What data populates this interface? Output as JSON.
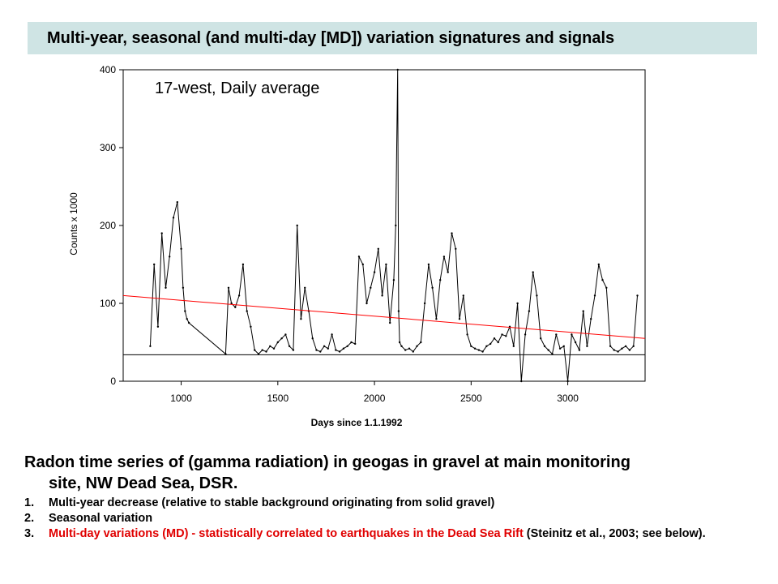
{
  "title": "Multi-year, seasonal (and multi-day [MD]) variation signatures and signals",
  "chart_data": {
    "type": "line",
    "annotation": "17-west, Daily average",
    "xlabel": "Days since 1.1.1992",
    "ylabel": "Counts x 1000",
    "xlim": [
      700,
      3400
    ],
    "ylim": [
      0,
      400
    ],
    "xticks": [
      1000,
      1500,
      2000,
      2500,
      3000
    ],
    "yticks": [
      0,
      100,
      200,
      300,
      400
    ],
    "grid": false,
    "series": [
      {
        "color": "#000000",
        "x": [
          840,
          860,
          880,
          900,
          920,
          940,
          960,
          980,
          1000,
          1010,
          1020,
          1030,
          1040,
          1230,
          1245,
          1260,
          1280,
          1300,
          1320,
          1340,
          1360,
          1380,
          1400,
          1420,
          1440,
          1460,
          1480,
          1500,
          1520,
          1540,
          1560,
          1580,
          1600,
          1620,
          1640,
          1660,
          1680,
          1700,
          1720,
          1740,
          1760,
          1780,
          1800,
          1820,
          1840,
          1860,
          1880,
          1900,
          1920,
          1940,
          1960,
          1980,
          2000,
          2020,
          2040,
          2060,
          2080,
          2100,
          2110,
          2120,
          2125,
          2130,
          2140,
          2160,
          2180,
          2200,
          2220,
          2240,
          2260,
          2280,
          2300,
          2320,
          2340,
          2360,
          2380,
          2400,
          2420,
          2440,
          2460,
          2480,
          2500,
          2520,
          2540,
          2560,
          2580,
          2600,
          2620,
          2640,
          2660,
          2680,
          2700,
          2720,
          2740,
          2760,
          2780,
          2800,
          2820,
          2840,
          2860,
          2880,
          2900,
          2920,
          2940,
          2960,
          2980,
          3000,
          3020,
          3040,
          3060,
          3080,
          3100,
          3120,
          3140,
          3160,
          3180,
          3200,
          3220,
          3240,
          3260,
          3280,
          3300,
          3320,
          3340,
          3360
        ],
        "y": [
          45,
          150,
          70,
          190,
          120,
          160,
          210,
          230,
          170,
          120,
          90,
          80,
          75,
          35,
          120,
          100,
          95,
          110,
          150,
          90,
          70,
          40,
          35,
          40,
          38,
          45,
          42,
          50,
          55,
          60,
          45,
          40,
          200,
          80,
          120,
          90,
          55,
          40,
          38,
          45,
          42,
          60,
          40,
          38,
          42,
          45,
          50,
          48,
          160,
          150,
          100,
          120,
          140,
          170,
          110,
          150,
          75,
          130,
          200,
          400,
          90,
          50,
          45,
          40,
          42,
          38,
          45,
          50,
          100,
          150,
          120,
          80,
          130,
          160,
          140,
          190,
          170,
          80,
          110,
          60,
          45,
          42,
          40,
          38,
          45,
          48,
          55,
          50,
          60,
          58,
          70,
          45,
          100,
          0,
          60,
          90,
          140,
          110,
          55,
          45,
          40,
          35,
          60,
          42,
          45,
          0,
          60,
          50,
          40,
          90,
          45,
          80,
          110,
          150,
          130,
          120,
          45,
          40,
          38,
          42,
          45,
          40,
          45,
          110
        ]
      },
      {
        "color": "#ff0000",
        "x": [
          700,
          3400
        ],
        "y": [
          110,
          55
        ]
      },
      {
        "color": "#000000",
        "x": [
          700,
          3400
        ],
        "y": [
          34,
          34
        ]
      }
    ]
  },
  "caption": {
    "line1": "Radon  time series of (gamma radiation) in geogas in gravel at main monitoring",
    "line2": "site, NW Dead Sea, DSR."
  },
  "notes": [
    {
      "num": "1.",
      "text": "Multi-year decrease (relative to stable background originating from solid gravel)"
    },
    {
      "num": "2.",
      "text": "Seasonal variation"
    },
    {
      "num": "3.",
      "red": "Multi-day variations (MD) - statistically correlated to earthquakes in the Dead Sea Rift",
      "rest": " (Steinitz et al., 2003; see below)."
    }
  ]
}
